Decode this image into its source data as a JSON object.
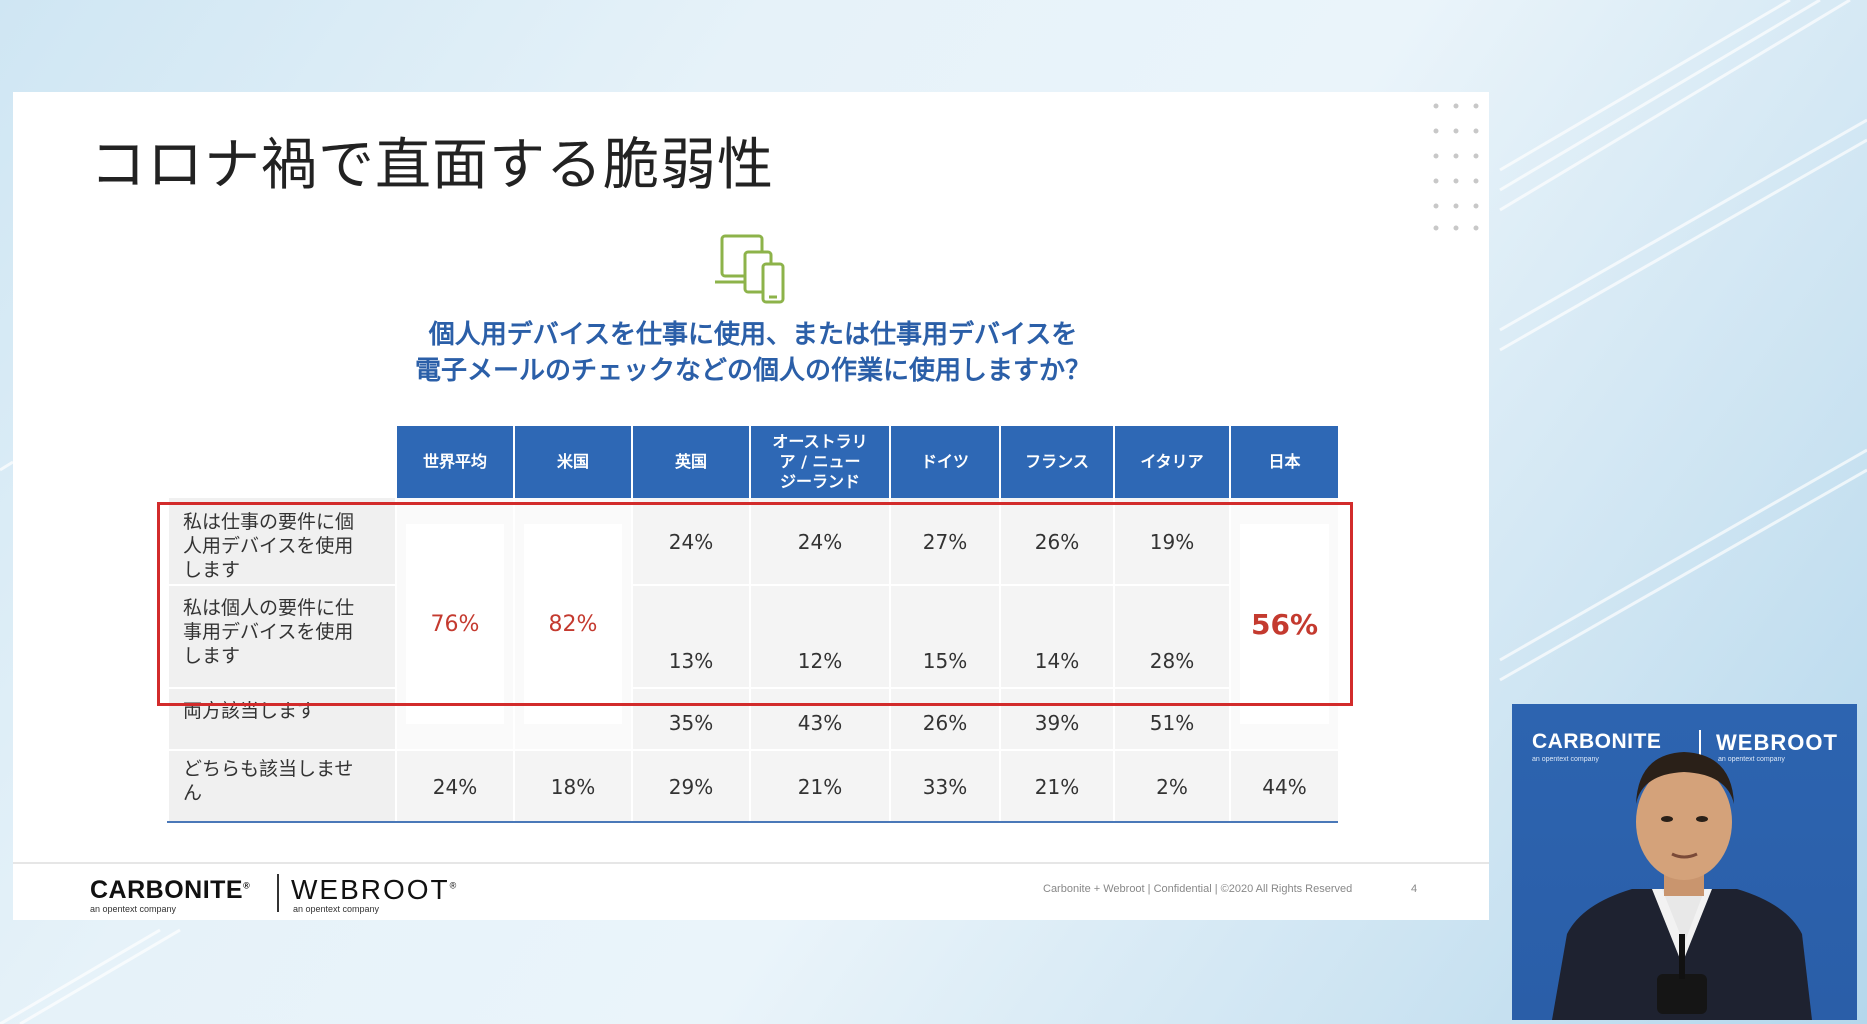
{
  "slide": {
    "title": "コロナ禍で直面する脆弱性",
    "question_line1": "個人用デバイスを仕事に使用、または仕事用デバイスを",
    "question_line2": "電子メールのチェックなどの個人の作業に使用しますか？",
    "icon": "devices-icon"
  },
  "table": {
    "headers": [
      "世界平均",
      "米国",
      "英国",
      "オーストラリア / ニュージーランド",
      "ドイツ",
      "フランス",
      "イタリア",
      "日本"
    ],
    "header_au_line1": "オーストラリ",
    "header_au_line2": "ア / ニュー",
    "header_au_line3": "ジーランド",
    "rows": [
      {
        "label_l1": "私は仕事の要件に個",
        "label_l2": "人用デバイスを使用",
        "label_l3": "します",
        "values": [
          "24%",
          "24%",
          "27%",
          "26%",
          "19%"
        ]
      },
      {
        "label_l1": "私は個人の要件に仕",
        "label_l2": "事用デバイスを使用",
        "label_l3": "します",
        "values": [
          "13%",
          "12%",
          "15%",
          "14%",
          "28%"
        ]
      },
      {
        "label_l1": "両方該当します",
        "values": [
          "35%",
          "43%",
          "26%",
          "39%",
          "51%"
        ]
      },
      {
        "label_l1": "どちらも該当しませ",
        "label_l2": "ん",
        "values": [
          "24%",
          "18%",
          "29%",
          "21%",
          "33%",
          "21%",
          "2%",
          "44%"
        ]
      }
    ],
    "merged": {
      "world": "76%",
      "us": "82%",
      "japan": "56%"
    },
    "highlight_color": "#d22b2b",
    "header_color": "#2e68b5",
    "accent_red": "#c43a2f"
  },
  "footer": {
    "carbonite": "CARBONITE",
    "carbonite_sub": "an opentext company",
    "webroot": "WEBROOT",
    "webroot_sub": "an opentext company",
    "confidential": "Carbonite + Webroot | Confidential | ©2020 All Rights Reserved",
    "page": "4"
  },
  "presenter": {
    "carbonite": "CARBONITE",
    "webroot": "WEBROOT",
    "sub": "an opentext company"
  }
}
